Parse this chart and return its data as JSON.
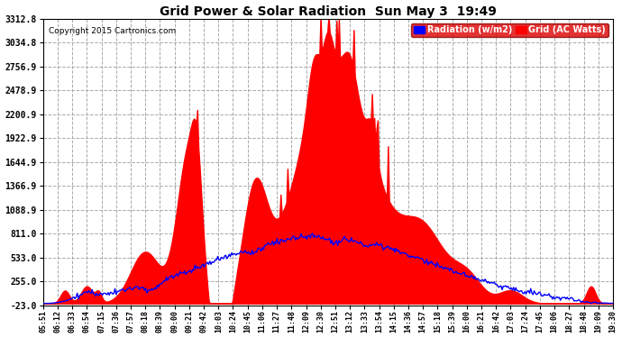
{
  "title": "Grid Power & Solar Radiation  Sun May 3  19:49",
  "copyright": "Copyright 2015 Cartronics.com",
  "background_color": "#ffffff",
  "plot_background": "#ffffff",
  "yticks": [
    -23.0,
    255.0,
    533.0,
    811.0,
    1088.9,
    1366.9,
    1644.9,
    1922.9,
    2200.9,
    2478.9,
    2756.9,
    3034.8,
    3312.8
  ],
  "ymin": -23.0,
  "ymax": 3312.8,
  "legend_labels": [
    "Radiation (w/m2)",
    "Grid (AC Watts)"
  ],
  "legend_colors": [
    "#0000ff",
    "#ff0000"
  ],
  "grid_color": "#aaaaaa",
  "title_color": "#000000",
  "xtick_labels": [
    "05:51",
    "06:12",
    "06:33",
    "06:54",
    "07:15",
    "07:36",
    "07:57",
    "08:18",
    "08:39",
    "09:00",
    "09:21",
    "09:42",
    "10:03",
    "10:24",
    "10:45",
    "11:06",
    "11:27",
    "11:48",
    "12:09",
    "12:30",
    "12:51",
    "13:12",
    "13:33",
    "13:54",
    "14:15",
    "14:36",
    "14:57",
    "15:18",
    "15:39",
    "16:00",
    "16:21",
    "16:42",
    "17:03",
    "17:24",
    "17:45",
    "18:06",
    "18:27",
    "18:48",
    "19:09",
    "19:30"
  ],
  "n_points": 500
}
